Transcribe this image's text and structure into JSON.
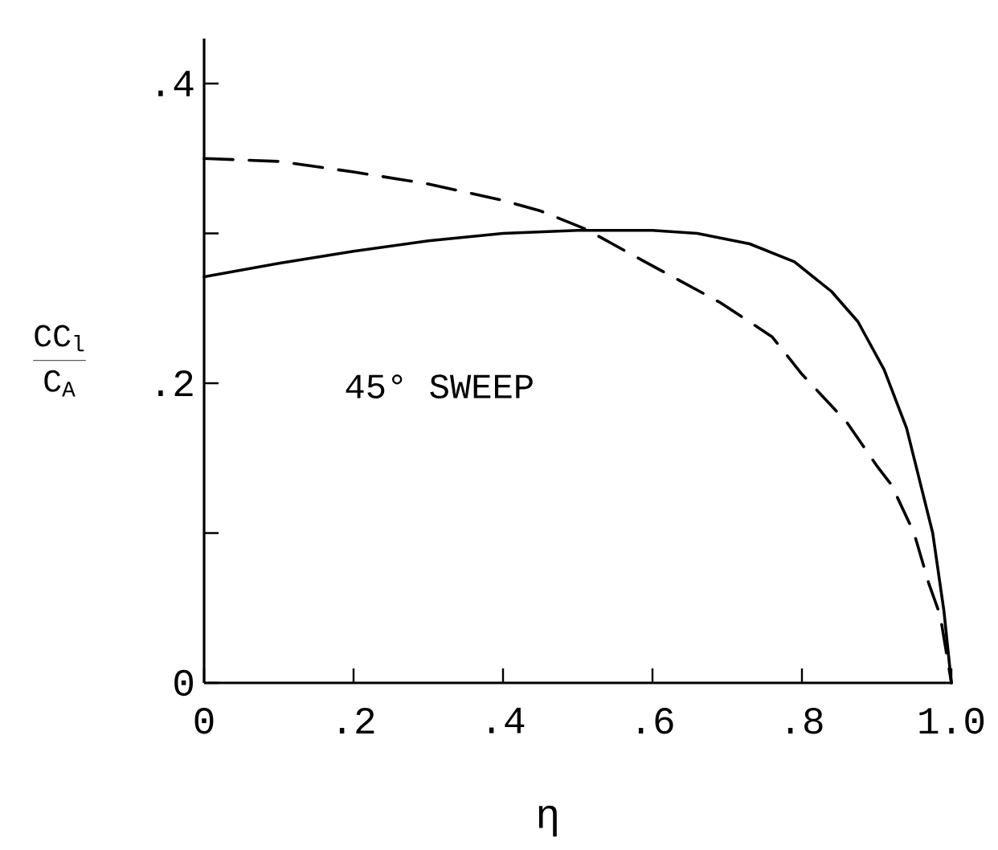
{
  "chart_data": {
    "type": "line",
    "xlabel": "η",
    "ylabel": "\\frac{\\mathtt{CC}_{\\mathtt{l}}}{\\mathtt{C}_{\\mathtt{A}}}",
    "annotations": [
      "45° SWEEP"
    ],
    "x": [
      0,
      0.1,
      0.2,
      0.3,
      0.4,
      0.5,
      0.6,
      0.66,
      0.73,
      0.79,
      0.84,
      0.875,
      0.91,
      0.94,
      0.955,
      0.975,
      0.99,
      1.0
    ],
    "series": [
      {
        "color": "#000000",
        "line_style": "solid",
        "values": [
          0.271,
          0.28,
          0.288,
          0.295,
          0.3,
          0.302,
          0.302,
          0.3,
          0.293,
          0.281,
          0.261,
          0.241,
          0.209,
          0.17,
          0.14,
          0.1,
          0.048,
          0
        ]
      },
      {
        "color": "#000000",
        "line_style": "dashed",
        "x": [
          0,
          0.1,
          0.2,
          0.3,
          0.4,
          0.45,
          0.51,
          0.59,
          0.69,
          0.76,
          0.8,
          0.86,
          0.9,
          0.92,
          0.95,
          0.97,
          0.985,
          1.0
        ],
        "values": [
          0.35,
          0.348,
          0.341,
          0.333,
          0.322,
          0.315,
          0.303,
          0.281,
          0.254,
          0.231,
          0.206,
          0.174,
          0.145,
          0.132,
          0.1,
          0.066,
          0.045,
          0
        ]
      }
    ],
    "xlim": [
      0,
      1.0
    ],
    "ylim": [
      0,
      0.43
    ],
    "xticks": [
      0,
      {
        "value": 0.2,
        "label": ".2"
      },
      {
        "value": 0.4,
        "label": ".4"
      },
      {
        "value": 0.6,
        "label": ".6"
      },
      {
        "value": 0.8,
        "label": ".8"
      },
      {
        "value": 1.0,
        "label": "1.0"
      }
    ],
    "yticks": [
      0,
      {
        "value": 0.1,
        "label": null
      },
      {
        "value": 0.2,
        "label": ".2"
      },
      {
        "value": 0.3,
        "label": null
      },
      {
        "value": 0.4,
        "label": ".4"
      }
    ],
    "marker": "none"
  }
}
